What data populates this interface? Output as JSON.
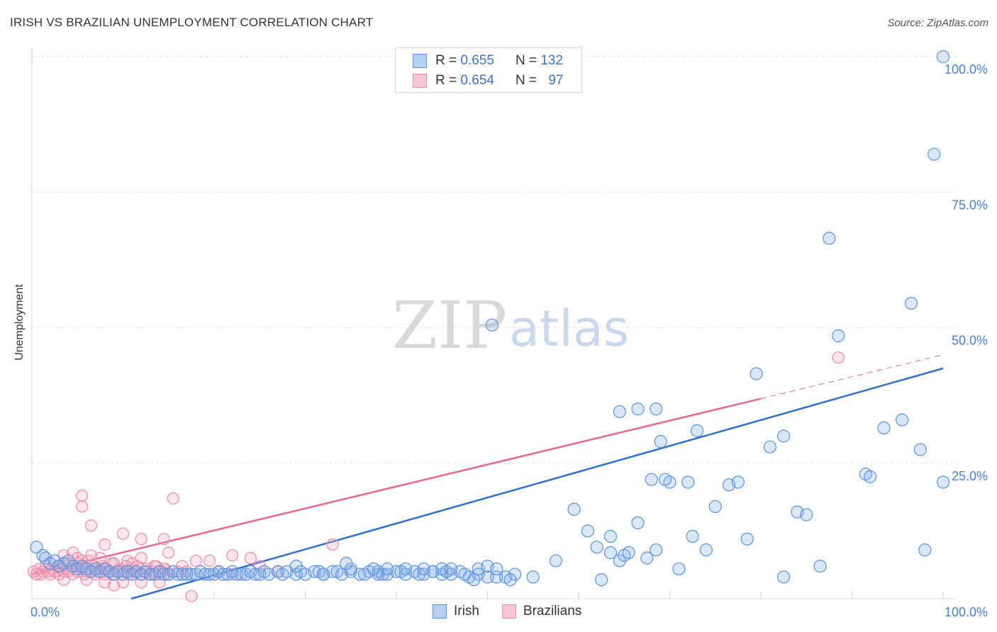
{
  "title": "IRISH VS BRAZILIAN UNEMPLOYMENT CORRELATION CHART",
  "source": "Source: ZipAtlas.com",
  "watermark": {
    "zip": "ZIP",
    "atlas": "atlas"
  },
  "colors": {
    "irish": "#5b93e0",
    "irish_line": "#2f6fd0",
    "brazilians": "#f08aaa",
    "brazilians_line": "#e5698f",
    "tick": "#4a7fd0"
  },
  "legend": {
    "rows": [
      {
        "r_label": "R =",
        "r": "0.655",
        "n_label": "N =",
        "n": "132"
      },
      {
        "r_label": "R =",
        "r": "0.654",
        "n_label": "N =",
        "n": "97"
      }
    ],
    "bottom": [
      "Irish",
      "Brazilians"
    ]
  },
  "chart_data": {
    "type": "scatter",
    "title": "IRISH VS BRAZILIAN UNEMPLOYMENT CORRELATION CHART",
    "xlabel": "",
    "ylabel": "Unemployment",
    "xlim": [
      0,
      100
    ],
    "ylim": [
      0,
      100
    ],
    "x_tick_labels": [
      {
        "value": 0,
        "label": "0.0%"
      },
      {
        "value": 100,
        "label": "100.0%"
      }
    ],
    "y_tick_labels": [
      {
        "value": 25,
        "label": "25.0%"
      },
      {
        "value": 50,
        "label": "50.0%"
      },
      {
        "value": 75,
        "label": "75.0%"
      },
      {
        "value": 100,
        "label": "100.0%"
      }
    ],
    "grid": true,
    "series": [
      {
        "name": "Irish",
        "trend": {
          "x": [
            0,
            100
          ],
          "y": [
            -5.2,
            42.5
          ],
          "solid_to": 100
        },
        "points": [
          [
            0.5,
            9.5
          ],
          [
            1.2,
            8
          ],
          [
            1.5,
            7.5
          ],
          [
            2,
            6.5
          ],
          [
            2.5,
            7
          ],
          [
            3,
            6
          ],
          [
            3.5,
            6.5
          ],
          [
            4,
            7
          ],
          [
            4.5,
            6
          ],
          [
            5,
            5.5
          ],
          [
            5.5,
            6
          ],
          [
            6,
            5.5
          ],
          [
            6.5,
            5
          ],
          [
            7,
            5.5
          ],
          [
            7.5,
            5
          ],
          [
            8,
            5.5
          ],
          [
            8.5,
            5
          ],
          [
            9,
            4.5
          ],
          [
            9.5,
            5
          ],
          [
            10,
            4.5
          ],
          [
            10.5,
            5
          ],
          [
            11,
            4.5
          ],
          [
            11.5,
            5
          ],
          [
            12,
            4.5
          ],
          [
            12.5,
            5
          ],
          [
            13,
            4.5
          ],
          [
            13.5,
            4.5
          ],
          [
            14,
            5
          ],
          [
            14.5,
            4.5
          ],
          [
            15,
            4.5
          ],
          [
            15.5,
            5
          ],
          [
            16,
            4.5
          ],
          [
            16.5,
            4.5
          ],
          [
            17,
            4.5
          ],
          [
            17.5,
            4.5
          ],
          [
            18,
            4.5
          ],
          [
            18.5,
            5
          ],
          [
            19,
            4.5
          ],
          [
            19.5,
            4.5
          ],
          [
            20,
            4.5
          ],
          [
            20.5,
            5
          ],
          [
            21,
            4.5
          ],
          [
            21.5,
            4.5
          ],
          [
            22,
            5
          ],
          [
            22.5,
            4.5
          ],
          [
            23,
            4.5
          ],
          [
            23.5,
            4.5
          ],
          [
            24,
            5
          ],
          [
            24.5,
            4.5
          ],
          [
            25,
            4.5
          ],
          [
            25.5,
            5
          ],
          [
            26,
            4.5
          ],
          [
            27,
            5
          ],
          [
            27.5,
            4.5
          ],
          [
            28,
            5
          ],
          [
            29,
            4.5
          ],
          [
            29.5,
            5
          ],
          [
            30,
            4.5
          ],
          [
            31,
            5
          ],
          [
            31.5,
            5
          ],
          [
            32,
            4.5
          ],
          [
            33,
            5
          ],
          [
            34,
            4.5
          ],
          [
            35,
            5
          ],
          [
            36,
            4.5
          ],
          [
            37,
            5
          ],
          [
            38,
            4.5
          ],
          [
            39,
            4.5
          ],
          [
            40,
            5
          ],
          [
            41,
            4.5
          ],
          [
            42,
            5
          ],
          [
            43,
            4.5
          ],
          [
            44,
            5
          ],
          [
            45,
            4.5
          ],
          [
            46,
            4.5
          ],
          [
            47,
            5
          ],
          [
            48,
            4
          ],
          [
            49,
            4.5
          ],
          [
            50,
            4
          ],
          [
            51,
            4
          ],
          [
            52,
            4
          ],
          [
            53,
            4.5
          ],
          [
            32,
            4.5
          ],
          [
            33.5,
            5
          ],
          [
            36.5,
            4.5
          ],
          [
            38.5,
            4.5
          ],
          [
            42.5,
            4.5
          ],
          [
            45.5,
            5
          ],
          [
            47.5,
            4.5
          ],
          [
            29,
            6
          ],
          [
            35,
            5.5
          ],
          [
            38,
            5
          ],
          [
            39,
            5.5
          ],
          [
            41,
            5.5
          ],
          [
            43,
            5.5
          ],
          [
            45,
            5.5
          ],
          [
            49,
            5.5
          ],
          [
            50,
            6
          ],
          [
            51,
            5.5
          ],
          [
            34.5,
            6.5
          ],
          [
            37.5,
            5.5
          ],
          [
            40.5,
            5
          ],
          [
            44,
            5
          ],
          [
            46,
            5.5
          ],
          [
            48.5,
            3.5
          ],
          [
            52.5,
            3.5
          ],
          [
            50.5,
            50.5
          ],
          [
            55,
            4
          ],
          [
            57.5,
            7
          ],
          [
            59.5,
            16.5
          ],
          [
            61,
            12.5
          ],
          [
            62,
            9.5
          ],
          [
            63.5,
            11.5
          ],
          [
            64.5,
            7
          ],
          [
            65,
            8
          ],
          [
            66.5,
            14
          ],
          [
            67.5,
            7.5
          ],
          [
            68.5,
            9
          ],
          [
            63.5,
            8.5
          ],
          [
            65.5,
            8.5
          ],
          [
            62.5,
            3.5
          ],
          [
            64.5,
            34.5
          ],
          [
            66.5,
            35
          ],
          [
            68.5,
            35
          ],
          [
            69,
            29
          ],
          [
            70,
            21.5
          ],
          [
            71,
            5.5
          ],
          [
            72.5,
            11.5
          ],
          [
            68,
            22
          ],
          [
            69.5,
            22
          ],
          [
            72,
            21.5
          ],
          [
            73,
            31
          ],
          [
            74,
            9
          ],
          [
            75,
            17
          ],
          [
            76.5,
            21
          ],
          [
            77.5,
            21.5
          ],
          [
            78.5,
            11
          ],
          [
            81,
            28
          ],
          [
            82.5,
            30
          ],
          [
            84,
            16
          ],
          [
            85,
            15.5
          ],
          [
            82.5,
            4
          ],
          [
            86.5,
            6
          ],
          [
            79.5,
            41.5
          ],
          [
            87.5,
            66.5
          ],
          [
            88.5,
            48.5
          ],
          [
            91.5,
            23
          ],
          [
            92,
            22.5
          ],
          [
            93.5,
            31.5
          ],
          [
            95.5,
            33
          ],
          [
            96.5,
            54.5
          ],
          [
            97.5,
            27.5
          ],
          [
            98,
            9
          ],
          [
            100,
            21.5
          ],
          [
            99,
            82
          ],
          [
            100,
            100
          ]
        ]
      },
      {
        "name": "Brazilians",
        "trend": {
          "x": [
            0,
            100
          ],
          "y": [
            4.5,
            45
          ],
          "solid_to": 80
        },
        "points": [
          [
            0.2,
            5
          ],
          [
            0.5,
            4.5
          ],
          [
            0.8,
            5.5
          ],
          [
            1,
            4.5
          ],
          [
            1.2,
            5
          ],
          [
            1.5,
            6
          ],
          [
            1.8,
            5
          ],
          [
            2,
            4.5
          ],
          [
            2.2,
            5.5
          ],
          [
            2.5,
            5
          ],
          [
            2.8,
            6
          ],
          [
            3,
            4.5
          ],
          [
            3.2,
            5.5
          ],
          [
            3.5,
            5
          ],
          [
            3.8,
            6.5
          ],
          [
            4,
            5
          ],
          [
            4.2,
            5.5
          ],
          [
            4.5,
            4.5
          ],
          [
            4.8,
            6
          ],
          [
            5,
            5
          ],
          [
            5.2,
            6.5
          ],
          [
            5.5,
            5.5
          ],
          [
            5.8,
            4.5
          ],
          [
            6,
            5
          ],
          [
            6.2,
            7
          ],
          [
            6.5,
            5.5
          ],
          [
            6.8,
            6
          ],
          [
            7,
            4.5
          ],
          [
            7.2,
            5
          ],
          [
            7.5,
            5.5
          ],
          [
            7.8,
            6
          ],
          [
            8,
            4.5
          ],
          [
            8.2,
            5.5
          ],
          [
            8.5,
            5
          ],
          [
            8.8,
            6.5
          ],
          [
            9,
            4.5
          ],
          [
            9.3,
            5
          ],
          [
            9.6,
            5.5
          ],
          [
            10,
            5
          ],
          [
            10.3,
            6
          ],
          [
            10.6,
            4.5
          ],
          [
            11,
            5.5
          ],
          [
            11.3,
            5
          ],
          [
            11.6,
            6
          ],
          [
            12,
            4.5
          ],
          [
            12.3,
            5
          ],
          [
            12.6,
            5.5
          ],
          [
            13,
            4.5
          ],
          [
            13.3,
            5
          ],
          [
            13.6,
            6
          ],
          [
            14,
            4.5
          ],
          [
            14.3,
            5
          ],
          [
            14.6,
            5.5
          ],
          [
            15,
            4.5
          ],
          [
            3.5,
            3.5
          ],
          [
            6,
            3.5
          ],
          [
            8,
            3
          ],
          [
            9,
            2.5
          ],
          [
            10,
            3
          ],
          [
            12,
            3
          ],
          [
            14,
            3
          ],
          [
            17.5,
            0.5
          ],
          [
            3.5,
            8
          ],
          [
            4.5,
            8.5
          ],
          [
            5,
            7.5
          ],
          [
            5.5,
            7
          ],
          [
            6.5,
            8
          ],
          [
            7.5,
            7.5
          ],
          [
            8,
            10
          ],
          [
            9,
            6.5
          ],
          [
            10.5,
            7
          ],
          [
            11,
            6.5
          ],
          [
            12,
            7.5
          ],
          [
            13.5,
            6
          ],
          [
            14.5,
            11
          ],
          [
            15,
            8.5
          ],
          [
            14.5,
            5.5
          ],
          [
            16,
            5
          ],
          [
            16.5,
            6
          ],
          [
            17,
            5
          ],
          [
            18,
            7
          ],
          [
            19.5,
            7
          ],
          [
            20.5,
            5
          ],
          [
            22,
            4.5
          ],
          [
            24,
            7.5
          ],
          [
            25,
            6
          ],
          [
            27,
            5
          ],
          [
            5.5,
            19
          ],
          [
            5.5,
            17
          ],
          [
            6.5,
            13.5
          ],
          [
            10,
            12
          ],
          [
            12,
            11
          ],
          [
            15.5,
            18.5
          ],
          [
            22,
            8
          ],
          [
            33,
            10
          ],
          [
            88.5,
            44.5
          ]
        ]
      }
    ]
  }
}
